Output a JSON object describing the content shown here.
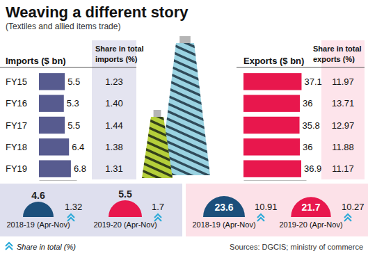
{
  "chart_data": [
    {
      "type": "bar",
      "title": "Weaving a different story",
      "subtitle": "(Textiles and allied items trade)",
      "orientation": "horizontal",
      "data_labels": true,
      "tick_labels": false,
      "categories": [
        "FY15",
        "FY16",
        "FY17",
        "FY18",
        "FY19"
      ],
      "ylim": [
        0,
        8
      ],
      "y2lim": [
        0,
        40
      ],
      "series": [
        {
          "name": "Imports ($ bn)",
          "color": "#575b8f",
          "values": [
            5.5,
            5.3,
            5.5,
            6.4,
            6.8
          ],
          "share_title": "Share in total imports (%)",
          "share": [
            1.23,
            1.4,
            1.44,
            1.38,
            1.31
          ],
          "share_labels": [
            "1.23",
            "1.40",
            "1.44",
            "1.38",
            "1.31"
          ]
        },
        {
          "name": "Exports ($ bn)",
          "color": "#e8174d",
          "axis": "y2",
          "values": [
            37.1,
            36,
            35.8,
            36,
            36.9
          ],
          "share_title": "Share in total exports (%)",
          "share": [
            11.97,
            13.71,
            12.97,
            11.88,
            11.17
          ],
          "share_labels": [
            "11.97",
            "13.71",
            "12.97",
            "11.88",
            "11.17"
          ]
        }
      ]
    },
    {
      "type": "semicircle",
      "categories": [
        "2018-19 (Apr-Nov)",
        "2019-20 (Apr-Nov)"
      ],
      "colors": [
        "#1c4f7b",
        "#e8174d"
      ],
      "data_labels": true,
      "share_title": "Share in total (%)",
      "source": "Sources: DGCIS; ministry of commerce",
      "series": [
        {
          "values": [
            4.6,
            5.5
          ],
          "share": [
            1.32,
            1.7
          ]
        },
        {
          "values": [
            23.6,
            21.7
          ],
          "share": [
            10.91,
            10.27
          ]
        }
      ]
    }
  ]
}
